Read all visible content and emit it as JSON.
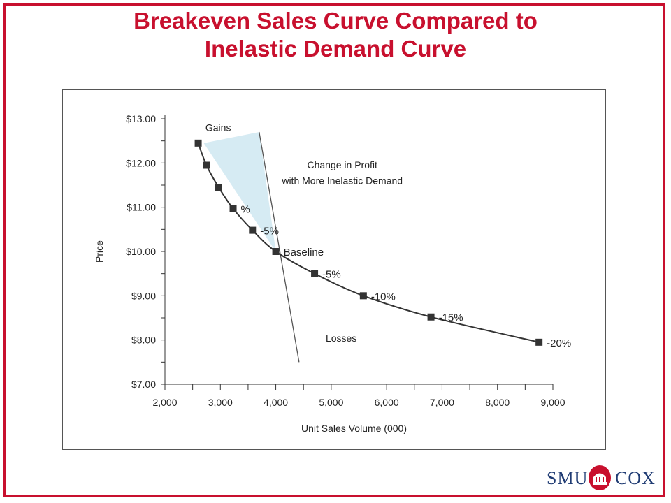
{
  "slide": {
    "title_line1": "Breakeven Sales Curve Compared to",
    "title_line2": "Inelastic Demand Curve",
    "accent_color": "#c8102e"
  },
  "logo": {
    "left_text": "SMU",
    "right_text": "COX",
    "brand_color": "#1f3b73"
  },
  "chart_data": {
    "type": "line",
    "xlabel": "Unit Sales Volume (000)",
    "ylabel": "Price",
    "xlim": [
      2000,
      9000
    ],
    "ylim": [
      7.0,
      13.0
    ],
    "x_ticks": [
      2000,
      3000,
      4000,
      5000,
      6000,
      7000,
      8000,
      9000
    ],
    "x_tick_labels": [
      "2,000",
      "3,000",
      "4,000",
      "5,000",
      "6,000",
      "7,000",
      "8,000",
      "9,000"
    ],
    "y_ticks": [
      7,
      8,
      9,
      10,
      11,
      12,
      13
    ],
    "y_tick_labels": [
      "$7.00",
      "$8.00",
      "$9.00",
      "$10.00",
      "$11.00",
      "$12.00",
      "$13.00"
    ],
    "grid": false,
    "series": [
      {
        "kind": "breakeven-curve",
        "color": "#333333",
        "points": [
          {
            "x": 2600,
            "y": 12.45,
            "label": ""
          },
          {
            "x": 2750,
            "y": 11.95,
            "label": ""
          },
          {
            "x": 2970,
            "y": 11.45,
            "label": ""
          },
          {
            "x": 3230,
            "y": 10.97,
            "label": "%"
          },
          {
            "x": 3580,
            "y": 10.48,
            "label": "-5%"
          },
          {
            "x": 4000,
            "y": 10.0,
            "label": "Baseline"
          },
          {
            "x": 4700,
            "y": 9.5,
            "label": "-5%"
          },
          {
            "x": 5580,
            "y": 9.0,
            "label": "-10%"
          },
          {
            "x": 6800,
            "y": 8.52,
            "label": "-15%"
          },
          {
            "x": 8750,
            "y": 7.95,
            "label": "-20%"
          }
        ]
      },
      {
        "kind": "demand-line",
        "color": "#555555",
        "points": [
          {
            "x": 3700,
            "y": 12.7
          },
          {
            "x": 4420,
            "y": 7.5
          }
        ]
      }
    ],
    "gain_region": {
      "color": "#d6ebf3",
      "points": [
        {
          "x": 2700,
          "y": 12.45
        },
        {
          "x": 3700,
          "y": 12.7
        },
        {
          "x": 4000,
          "y": 10.0
        }
      ]
    },
    "annotations": [
      {
        "text": "Gains",
        "x": 2730,
        "y": 12.72
      },
      {
        "text": "Change in Profit",
        "x": 5200,
        "y": 11.88
      },
      {
        "text": "with More Inelastic Demand",
        "x": 5200,
        "y": 11.52
      },
      {
        "text": "Losses",
        "x": 5180,
        "y": 7.96
      }
    ]
  }
}
